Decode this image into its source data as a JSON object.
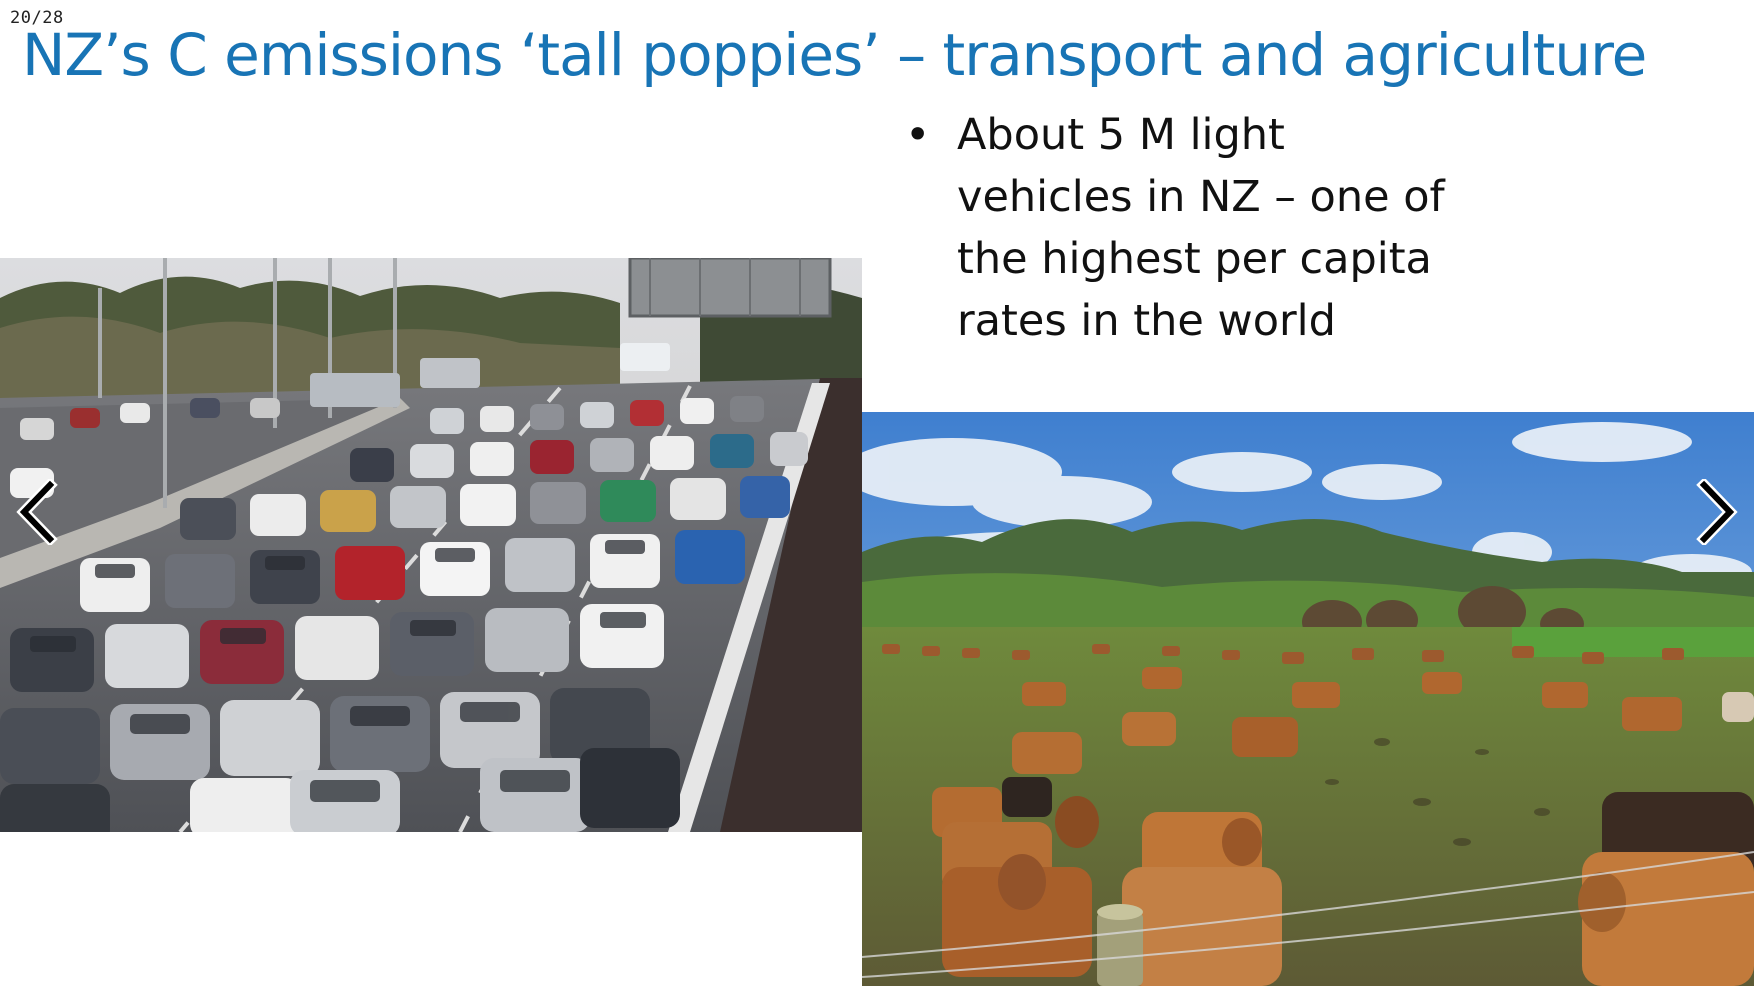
{
  "slide": {
    "counter": "20/28",
    "title": "NZ’s C emissions ‘tall poppies’ – transport and agriculture",
    "bullets": [
      "About 5 M light vehicles in NZ – one of the highest per capita rates in the world"
    ]
  },
  "images": {
    "traffic": {
      "subject": "motorway traffic jam photo"
    },
    "cows": {
      "subject": "cows grazing in pasture photo"
    }
  },
  "navigation": {
    "prev_icon": "chevron-left-icon",
    "next_icon": "chevron-right-icon"
  },
  "colors": {
    "title": "#1874b5",
    "text": "#111111",
    "background": "#ffffff"
  }
}
